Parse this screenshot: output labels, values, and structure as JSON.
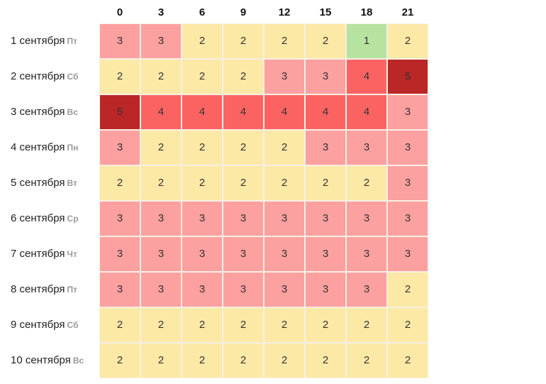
{
  "chart_data": {
    "type": "heatmap",
    "title": "",
    "columns": [
      "0",
      "3",
      "6",
      "9",
      "12",
      "15",
      "18",
      "21"
    ],
    "rows": [
      {
        "date": "1 сентября",
        "dow": "Пт",
        "values": [
          3,
          3,
          2,
          2,
          2,
          2,
          1,
          2
        ]
      },
      {
        "date": "2 сентября",
        "dow": "Сб",
        "values": [
          2,
          2,
          2,
          2,
          3,
          3,
          4,
          5
        ]
      },
      {
        "date": "3 сентября",
        "dow": "Вс",
        "values": [
          5,
          4,
          4,
          4,
          4,
          4,
          4,
          3
        ]
      },
      {
        "date": "4 сентября",
        "dow": "Пн",
        "values": [
          3,
          2,
          2,
          2,
          2,
          3,
          3,
          3
        ]
      },
      {
        "date": "5 сентября",
        "dow": "Вт",
        "values": [
          2,
          2,
          2,
          2,
          2,
          2,
          2,
          3
        ]
      },
      {
        "date": "6 сентября",
        "dow": "Ср",
        "values": [
          3,
          3,
          3,
          3,
          3,
          3,
          3,
          3
        ]
      },
      {
        "date": "7 сентября",
        "dow": "Чт",
        "values": [
          3,
          3,
          3,
          3,
          3,
          3,
          3,
          3
        ]
      },
      {
        "date": "8 сентября",
        "dow": "Пт",
        "values": [
          3,
          3,
          3,
          3,
          3,
          3,
          3,
          2
        ]
      },
      {
        "date": "9 сентября",
        "dow": "Сб",
        "values": [
          2,
          2,
          2,
          2,
          2,
          2,
          2,
          2
        ]
      },
      {
        "date": "10 сентября",
        "dow": "Вс",
        "values": [
          2,
          2,
          2,
          2,
          2,
          2,
          2,
          2
        ]
      }
    ],
    "color_scale": {
      "1": "#b6e3a0",
      "2": "#fde9a6",
      "3": "#fda0a0",
      "4": "#fb6363",
      "5": "#bb2626"
    }
  }
}
